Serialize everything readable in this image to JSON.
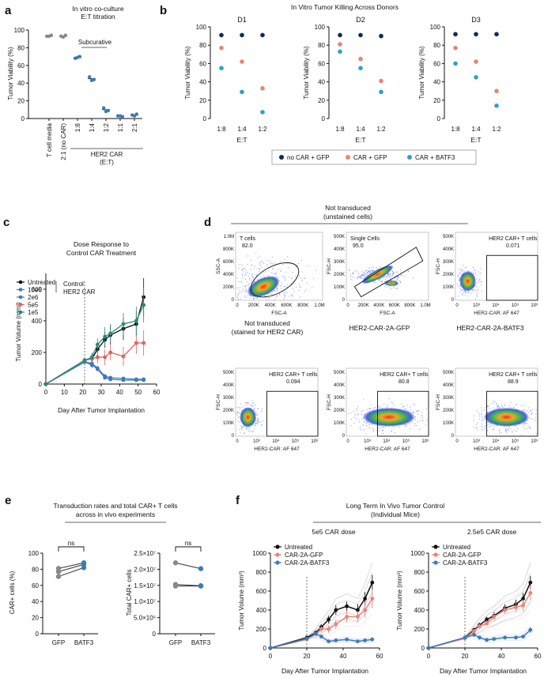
{
  "colors": {
    "navy": "#0d2a57",
    "salmon": "#e8837a",
    "teal": "#2aa3c9",
    "steel": "#3d7ab8",
    "red": "#e0625d",
    "green": "#2a8a76",
    "gray": "#888888",
    "black": "#111111",
    "flow_low": "#1f3fd6",
    "flow_mid": "#3fb84a",
    "flow_hi": "#f2a62b",
    "flow_core": "#e83424"
  },
  "panels": {
    "a": {
      "letter": "a",
      "title1": "In vitro co-culture",
      "title2": "E:T titration",
      "bracket_label": "Subcurative",
      "group_label1": "HER2 CAR",
      "group_label2": "(E:T)"
    },
    "b": {
      "letter": "b",
      "title": "In Vitro Tumor Killing Across Donors"
    },
    "c": {
      "letter": "c",
      "title1": "Dose Response to",
      "title2": "Control CAR Treatment",
      "annotation1": "Control",
      "annotation2": "HER2 CAR"
    },
    "d": {
      "letter": "d",
      "header1": "Not transduced",
      "header2": "(unstained cells)",
      "row2_titles": [
        [
          "Not transduced",
          "(stained for HER2 CAR)"
        ],
        [
          "HER2-CAR-2A-GFP",
          ""
        ],
        [
          "HER2-CAR-2A-BATF3",
          ""
        ]
      ]
    },
    "e": {
      "letter": "e",
      "title1": "Transduction rates and total CAR+ T cells",
      "title2": "across in vivo experiments"
    },
    "f": {
      "letter": "f",
      "title1": "Long Term In Vivo Tumor Control",
      "title2": "(Individual Mice)",
      "sub_left": "5e5 CAR dose",
      "sub_right": "2.5e5 CAR dose"
    }
  },
  "chart_data": [
    {
      "id": "a",
      "type": "scatter",
      "title": "In vitro co-culture E:T titration",
      "ylabel": "Tumor Viability (%)",
      "ylim": [
        0,
        100
      ],
      "yticks": [
        0,
        20,
        40,
        60,
        80,
        100
      ],
      "categories": [
        "T cell media",
        "2:1 (no CAR)",
        "1:8",
        "1:4",
        "1:2",
        "1:1",
        "2:1"
      ],
      "replicates": [
        [
          93,
          93,
          94
        ],
        [
          93,
          92,
          94
        ],
        [
          68,
          69,
          70
        ],
        [
          47,
          43,
          44
        ],
        [
          12,
          8,
          9
        ],
        [
          3,
          3,
          2
        ],
        [
          4,
          3,
          5
        ]
      ],
      "means": [
        93,
        93,
        69,
        45,
        10,
        3,
        4
      ]
    },
    {
      "id": "b",
      "type": "scatter",
      "ylabel": "Tumor Viability (%)",
      "xlabel": "E:T",
      "ylim": [
        0,
        100
      ],
      "yticks": [
        0,
        20,
        40,
        60,
        80,
        100
      ],
      "categories": [
        "1:8",
        "1:4",
        "1:2"
      ],
      "legend": [
        "no CAR + GFP",
        "CAR + GFP",
        "CAR + BATF3"
      ],
      "donors": [
        {
          "name": "D1",
          "series": [
            [
              91,
              91,
              91
            ],
            [
              77,
              62,
              33
            ],
            [
              55,
              29,
              7
            ]
          ]
        },
        {
          "name": "D2",
          "series": [
            [
              91,
              91,
              90
            ],
            [
              81,
              65,
              41
            ],
            [
              73,
              55,
              29
            ]
          ]
        },
        {
          "name": "D3",
          "series": [
            [
              92,
              92,
              92
            ],
            [
              77,
              62,
              30
            ],
            [
              60,
              45,
              14
            ]
          ]
        }
      ]
    },
    {
      "id": "c",
      "type": "line",
      "title": "Dose Response to Control CAR Treatment",
      "xlabel": "Day After Tumor Implantation",
      "ylabel": "Tumor Volume (mm³)",
      "xlim": [
        0,
        60
      ],
      "ylim": [
        0,
        700
      ],
      "xticks": [
        0,
        10,
        20,
        30,
        40,
        50,
        60
      ],
      "yticks": [
        0,
        200,
        400,
        600
      ],
      "treatment_day": 21,
      "x": [
        0,
        21,
        25,
        28,
        32,
        35,
        42,
        49,
        53
      ],
      "series": [
        {
          "name": "Untreated",
          "values": [
            0,
            150,
            160,
            220,
            280,
            310,
            350,
            380,
            550
          ],
          "err": [
            0,
            20,
            30,
            40,
            50,
            60,
            70,
            80,
            120
          ]
        },
        {
          "name": "10e6",
          "values": [
            0,
            140,
            120,
            95,
            40,
            30,
            25,
            25,
            25
          ],
          "err": [
            0,
            20,
            20,
            15,
            10,
            8,
            8,
            8,
            8
          ]
        },
        {
          "name": "2e6",
          "values": [
            0,
            140,
            130,
            100,
            50,
            40,
            35,
            30,
            30
          ],
          "err": [
            0,
            20,
            20,
            15,
            10,
            8,
            8,
            8,
            8
          ]
        },
        {
          "name": "5e5",
          "values": [
            0,
            150,
            160,
            170,
            170,
            200,
            175,
            260,
            260
          ],
          "err": [
            0,
            20,
            30,
            40,
            50,
            50,
            60,
            70,
            80
          ]
        },
        {
          "name": "1e5",
          "values": [
            0,
            150,
            170,
            250,
            300,
            320,
            380,
            400,
            500
          ],
          "err": [
            0,
            20,
            30,
            40,
            60,
            60,
            70,
            90,
            110
          ]
        }
      ]
    },
    {
      "id": "d",
      "type": "scatter",
      "description_free": true,
      "plots": [
        {
          "gate": "T cells",
          "pct": "82.0",
          "xlabel": "FSC-A",
          "ylabel": "SSC-A",
          "xticks": [
            "0",
            "200K",
            "400K",
            "600K",
            "800K",
            "1.0M"
          ],
          "yticks": [
            "0",
            "200K",
            "400K",
            "600K",
            "800K",
            "1.0M"
          ]
        },
        {
          "gate": "Single Cells",
          "pct": "95.0",
          "xlabel": "FSC-A",
          "ylabel": "FSC-H",
          "xticks": [
            "0",
            "200K",
            "400K",
            "600K",
            "800K",
            "1.0M"
          ],
          "yticks": [
            "0",
            "100K",
            "200K",
            "300K",
            "400K",
            "500K"
          ]
        },
        {
          "gate": "HER2 CAR+ T cells",
          "pct": "0.071",
          "xlabel": "HER2-CAR: AF 647",
          "ylabel": "FSC-H",
          "xticks": [
            "0",
            "10³",
            "10⁴",
            "10⁵",
            "10⁶"
          ],
          "yticks": [
            "0",
            "100K",
            "200K",
            "300K",
            "400K",
            "500K"
          ]
        },
        {
          "gate": "HER2 CAR+ T cells",
          "pct": "0.094",
          "xlabel": "HER2-CAR: AF 647",
          "ylabel": "FSC-H",
          "xticks": [
            "0",
            "10³",
            "10⁴",
            "10⁵",
            "10⁶"
          ],
          "yticks": [
            "0",
            "100K",
            "200K",
            "300K",
            "400K",
            "500K"
          ]
        },
        {
          "gate": "HER2 CAR+ T cells",
          "pct": "80.8",
          "xlabel": "HER2-CAR: AF 647",
          "ylabel": "FSC-H",
          "xticks": [
            "0",
            "10³",
            "10⁴",
            "10⁵",
            "10⁶"
          ],
          "yticks": [
            "0",
            "100K",
            "200K",
            "300K",
            "400K",
            "500K"
          ]
        },
        {
          "gate": "HER2 CAR+ T cells",
          "pct": "88.9",
          "xlabel": "HER2-CAR: AF 647",
          "ylabel": "FSC-H",
          "xticks": [
            "0",
            "10³",
            "10⁴",
            "10⁵",
            "10⁶"
          ],
          "yticks": [
            "0",
            "100K",
            "200K",
            "300K",
            "400K",
            "500K"
          ]
        }
      ]
    },
    {
      "id": "e1",
      "type": "line",
      "ylabel": "CAR+ cells (%)",
      "categories": [
        "GFP",
        "BATF3"
      ],
      "ylim": [
        0,
        100
      ],
      "yticks": [
        0,
        20,
        40,
        60,
        80,
        100
      ],
      "significance": "ns",
      "pairs": [
        [
          81,
          88
        ],
        [
          77,
          86
        ],
        [
          71,
          82
        ]
      ]
    },
    {
      "id": "e2",
      "type": "line",
      "ylabel": "Total CAR+ cells",
      "categories": [
        "GFP",
        "BATF3"
      ],
      "ylim": [
        0,
        25000000
      ],
      "yticks": [
        "0",
        "5.0×10⁶",
        "1.0×10⁷",
        "1.5×10⁷",
        "2.0×10⁷",
        "2.5×10⁷"
      ],
      "yvals": [
        0,
        5000000,
        10000000,
        15000000,
        20000000,
        25000000
      ],
      "significance": "ns",
      "pairs": [
        [
          22000000,
          20200000
        ],
        [
          15300000,
          14900000
        ],
        [
          14800000,
          14800000
        ]
      ]
    },
    {
      "id": "f",
      "type": "line",
      "title": "Long Term In Vivo Tumor Control (Individual Mice)",
      "xlabel": "Day After Tumor Implantation",
      "ylabel": "Tumor Volume (mm³)",
      "xlim": [
        0,
        60
      ],
      "ylim": [
        0,
        1000
      ],
      "xticks": [
        0,
        20,
        40,
        60
      ],
      "yticks": [
        0,
        200,
        400,
        600,
        800,
        1000
      ],
      "treatment_day": 20,
      "legend": [
        "Untreated",
        "CAR-2A-GFP",
        "CAR-2A-BATF3"
      ],
      "x": [
        0,
        20,
        25,
        28,
        32,
        36,
        42,
        48,
        52,
        56
      ],
      "doses": [
        {
          "name": "5e5 CAR dose",
          "series": [
            {
              "name": "Untreated",
              "values": [
                0,
                110,
                160,
                220,
                300,
                400,
                440,
                400,
                520,
                690
              ],
              "err": [
                0,
                15,
                20,
                30,
                40,
                50,
                50,
                60,
                70,
                80
              ]
            },
            {
              "name": "CAR-2A-GFP",
              "values": [
                0,
                90,
                150,
                200,
                200,
                250,
                330,
                330,
                400,
                520
              ],
              "err": [
                0,
                15,
                20,
                30,
                40,
                50,
                60,
                60,
                80,
                100
              ]
            },
            {
              "name": "CAR-2A-BATF3",
              "values": [
                0,
                100,
                150,
                120,
                70,
                80,
                90,
                70,
                80,
                90
              ],
              "err": [
                0,
                15,
                20,
                20,
                15,
                15,
                15,
                15,
                15,
                20
              ]
            }
          ]
        },
        {
          "name": "2.5e5 CAR dose",
          "series": [
            {
              "name": "Untreated",
              "values": [
                0,
                110,
                190,
                240,
                300,
                340,
                420,
                460,
                520,
                690
              ],
              "err": [
                0,
                15,
                20,
                25,
                30,
                40,
                40,
                50,
                60,
                70
              ]
            },
            {
              "name": "CAR-2A-GFP",
              "values": [
                0,
                100,
                180,
                230,
                260,
                330,
                400,
                430,
                450,
                580
              ],
              "err": [
                0,
                15,
                20,
                25,
                30,
                40,
                40,
                50,
                60,
                80
              ]
            },
            {
              "name": "CAR-2A-BATF3",
              "values": [
                0,
                110,
                140,
                110,
                85,
                95,
                110,
                110,
                120,
                190
              ],
              "err": [
                0,
                15,
                20,
                20,
                15,
                15,
                15,
                20,
                20,
                30
              ]
            }
          ]
        }
      ]
    }
  ]
}
